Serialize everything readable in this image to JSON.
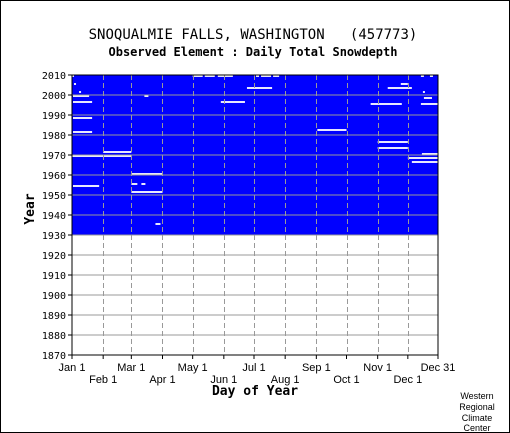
{
  "chart_data": {
    "type": "heatmap",
    "title": "SNOQUALMIE FALLS, WASHINGTON   (457773)",
    "subtitle": "Observed Element : Daily Total Snowdepth",
    "xlabel": "Day of Year",
    "ylabel": "Year",
    "ylim": [
      1870,
      2010
    ],
    "y_ticks": [
      1870,
      1880,
      1890,
      1900,
      1910,
      1920,
      1930,
      1940,
      1950,
      1960,
      1970,
      1980,
      1990,
      2000,
      2010
    ],
    "x_ticks_top_row": [
      {
        "label": "Jan 1",
        "day": 1
      },
      {
        "label": "Mar 1",
        "day": 60
      },
      {
        "label": "May 1",
        "day": 121
      },
      {
        "label": "Jul 1",
        "day": 182
      },
      {
        "label": "Sep 1",
        "day": 244
      },
      {
        "label": "Nov 1",
        "day": 305
      },
      {
        "label": "Dec 31",
        "day": 365
      }
    ],
    "x_ticks_bottom_row": [
      {
        "label": "Feb 1",
        "day": 32
      },
      {
        "label": "Apr 1",
        "day": 91
      },
      {
        "label": "Jun 1",
        "day": 152
      },
      {
        "label": "Aug 1",
        "day": 213
      },
      {
        "label": "Oct 1",
        "day": 274
      },
      {
        "label": "Dec 1",
        "day": 335
      }
    ],
    "grid": true,
    "observed_color": "#0000ff",
    "missing_color": "#ffffff",
    "observed_years": [
      1930,
      2010
    ],
    "missing_segments": [
      {
        "year": 2009,
        "start": 1,
        "end": 2
      },
      {
        "year": 2009,
        "start": 121,
        "end": 130
      },
      {
        "year": 2009,
        "start": 133,
        "end": 142
      },
      {
        "year": 2009,
        "start": 146,
        "end": 160
      },
      {
        "year": 2009,
        "start": 184,
        "end": 186
      },
      {
        "year": 2009,
        "start": 189,
        "end": 198
      },
      {
        "year": 2009,
        "start": 201,
        "end": 206
      },
      {
        "year": 2009,
        "start": 348,
        "end": 350
      },
      {
        "year": 2009,
        "start": 357,
        "end": 359
      },
      {
        "year": 2005,
        "start": 3,
        "end": 4
      },
      {
        "year": 2005,
        "start": 328,
        "end": 334
      },
      {
        "year": 2003,
        "start": 175,
        "end": 199
      },
      {
        "year": 2003,
        "start": 315,
        "end": 338
      },
      {
        "year": 2001,
        "start": 8,
        "end": 9
      },
      {
        "year": 2001,
        "start": 350,
        "end": 351
      },
      {
        "year": 1999,
        "start": 2,
        "end": 17
      },
      {
        "year": 1999,
        "start": 73,
        "end": 76
      },
      {
        "year": 1998,
        "start": 351,
        "end": 358
      },
      {
        "year": 1996,
        "start": 2,
        "end": 20
      },
      {
        "year": 1996,
        "start": 149,
        "end": 172
      },
      {
        "year": 1995,
        "start": 298,
        "end": 328
      },
      {
        "year": 1995,
        "start": 348,
        "end": 365
      },
      {
        "year": 1988,
        "start": 2,
        "end": 20
      },
      {
        "year": 1981,
        "start": 2,
        "end": 20
      },
      {
        "year": 1982,
        "start": 245,
        "end": 273
      },
      {
        "year": 1976,
        "start": 305,
        "end": 334
      },
      {
        "year": 1973,
        "start": 305,
        "end": 334
      },
      {
        "year": 1971,
        "start": 32,
        "end": 59
      },
      {
        "year": 1970,
        "start": 349,
        "end": 365
      },
      {
        "year": 1969,
        "start": 1,
        "end": 59
      },
      {
        "year": 1968,
        "start": 335,
        "end": 365
      },
      {
        "year": 1966,
        "start": 339,
        "end": 365
      },
      {
        "year": 1960,
        "start": 60,
        "end": 90
      },
      {
        "year": 1955,
        "start": 60,
        "end": 65
      },
      {
        "year": 1955,
        "start": 70,
        "end": 73
      },
      {
        "year": 1954,
        "start": 2,
        "end": 27
      },
      {
        "year": 1951,
        "start": 60,
        "end": 90
      },
      {
        "year": 1935,
        "start": 84,
        "end": 88
      }
    ]
  },
  "footer": {
    "credit_lines": [
      "Western",
      "Regional",
      "Climate",
      "Center"
    ]
  }
}
